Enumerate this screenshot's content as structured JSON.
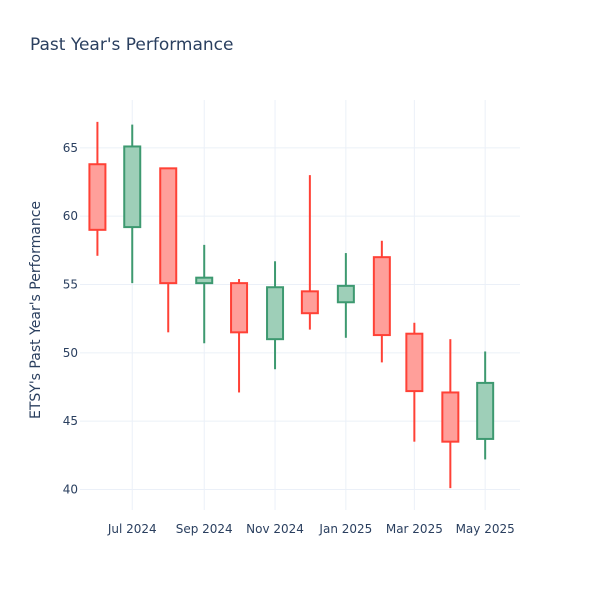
{
  "chart_data": {
    "type": "candlestick",
    "title": "Past Year's Performance",
    "xlabel": "",
    "ylabel": "ETSY's Past Year's Performance",
    "ylim": [
      38.5,
      68.5
    ],
    "yticks": [
      40,
      45,
      50,
      55,
      60,
      65
    ],
    "xticks": [
      {
        "label": "Jul 2024",
        "date": "2024-07-01"
      },
      {
        "label": "Sep 2024",
        "date": "2024-09-01"
      },
      {
        "label": "Nov 2024",
        "date": "2024-11-01"
      },
      {
        "label": "Jan 2025",
        "date": "2025-01-01"
      },
      {
        "label": "Mar 2025",
        "date": "2025-03-01"
      },
      {
        "label": "May 2025",
        "date": "2025-05-01"
      }
    ],
    "xlim": [
      "2024-05-17",
      "2025-05-31"
    ],
    "increasing_color": "#3d9970",
    "increasing_fill": "#9ecfb8",
    "decreasing_color": "#ff4136",
    "decreasing_fill": "#ff9f9a",
    "candles": [
      {
        "date": "2024-06-01",
        "open": 63.8,
        "high": 66.9,
        "low": 57.1,
        "close": 59.0
      },
      {
        "date": "2024-07-01",
        "open": 59.2,
        "high": 66.7,
        "low": 55.1,
        "close": 65.1
      },
      {
        "date": "2024-08-01",
        "open": 63.5,
        "high": 63.5,
        "low": 51.5,
        "close": 55.1
      },
      {
        "date": "2024-09-01",
        "open": 55.1,
        "high": 57.9,
        "low": 50.7,
        "close": 55.5
      },
      {
        "date": "2024-10-01",
        "open": 55.1,
        "high": 55.4,
        "low": 47.1,
        "close": 51.5
      },
      {
        "date": "2024-11-01",
        "open": 51.0,
        "high": 56.7,
        "low": 48.8,
        "close": 54.8
      },
      {
        "date": "2024-12-01",
        "open": 54.5,
        "high": 63.0,
        "low": 51.7,
        "close": 52.9
      },
      {
        "date": "2025-01-01",
        "open": 53.7,
        "high": 57.3,
        "low": 51.1,
        "close": 54.9
      },
      {
        "date": "2025-02-01",
        "open": 57.0,
        "high": 58.2,
        "low": 49.3,
        "close": 51.3
      },
      {
        "date": "2025-03-01",
        "open": 51.4,
        "high": 52.2,
        "low": 43.5,
        "close": 47.2
      },
      {
        "date": "2025-04-01",
        "open": 47.1,
        "high": 51.0,
        "low": 40.1,
        "close": 43.5
      },
      {
        "date": "2025-05-01",
        "open": 43.7,
        "high": 50.1,
        "low": 42.2,
        "close": 47.8
      }
    ]
  }
}
